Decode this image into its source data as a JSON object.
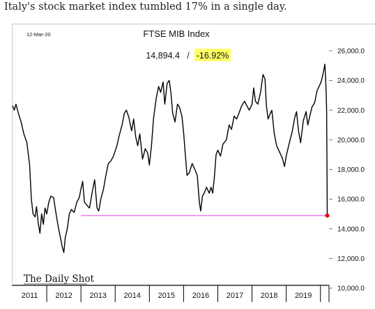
{
  "headline": "Italy's stock market index tumbled 17% in a single day.",
  "chart_data": {
    "type": "line",
    "date_label": "12-Mar-20",
    "title": "FTSE MIB Index",
    "last_value": "14,894.4",
    "value_separator": "/",
    "change_label": "-16.92%",
    "change_highlight_color": "#ffff66",
    "line_color": "#000000",
    "reference_line": {
      "y": 14894.4,
      "color": "#ee82ee"
    },
    "last_point_color": "#e00000",
    "ylim": [
      10000,
      26000
    ],
    "y_ticks": [
      {
        "value": 26000,
        "label": "26,000.0"
      },
      {
        "value": 24000,
        "label": "24,000.0"
      },
      {
        "value": 22000,
        "label": "22,000.0"
      },
      {
        "value": 20000,
        "label": "20,000.0"
      },
      {
        "value": 18000,
        "label": "18,000.0"
      },
      {
        "value": 16000,
        "label": "16,000.0"
      },
      {
        "value": 14000,
        "label": "14,000.0"
      },
      {
        "value": 12000,
        "label": "12,000.0"
      },
      {
        "value": 10000,
        "label": "10,000.0"
      }
    ],
    "xlim": [
      2011.0,
      2020.25
    ],
    "x_labels": [
      {
        "x": 2011.5,
        "label": "2011"
      },
      {
        "x": 2012.5,
        "label": "2012"
      },
      {
        "x": 2013.5,
        "label": "2013"
      },
      {
        "x": 2014.5,
        "label": "2014"
      },
      {
        "x": 2015.5,
        "label": "2015"
      },
      {
        "x": 2016.5,
        "label": "2016"
      },
      {
        "x": 2017.5,
        "label": "2017"
      },
      {
        "x": 2018.5,
        "label": "2018"
      },
      {
        "x": 2019.5,
        "label": "2019"
      }
    ],
    "series": [
      {
        "points": [
          [
            2011.0,
            22300
          ],
          [
            2011.05,
            22000
          ],
          [
            2011.1,
            22400
          ],
          [
            2011.17,
            21800
          ],
          [
            2011.25,
            21200
          ],
          [
            2011.33,
            20400
          ],
          [
            2011.42,
            19800
          ],
          [
            2011.5,
            18300
          ],
          [
            2011.55,
            16000
          ],
          [
            2011.6,
            15000
          ],
          [
            2011.66,
            14800
          ],
          [
            2011.7,
            15500
          ],
          [
            2011.75,
            14400
          ],
          [
            2011.8,
            13700
          ],
          [
            2011.85,
            15000
          ],
          [
            2011.9,
            14300
          ],
          [
            2011.95,
            15400
          ],
          [
            2012.0,
            15000
          ],
          [
            2012.06,
            15800
          ],
          [
            2012.12,
            16200
          ],
          [
            2012.2,
            16100
          ],
          [
            2012.26,
            15200
          ],
          [
            2012.33,
            14200
          ],
          [
            2012.4,
            13400
          ],
          [
            2012.45,
            12800
          ],
          [
            2012.5,
            12400
          ],
          [
            2012.54,
            13400
          ],
          [
            2012.6,
            14000
          ],
          [
            2012.66,
            15000
          ],
          [
            2012.72,
            15300
          ],
          [
            2012.8,
            15100
          ],
          [
            2012.88,
            15800
          ],
          [
            2012.95,
            16100
          ],
          [
            2013.0,
            16700
          ],
          [
            2013.05,
            17200
          ],
          [
            2013.1,
            15800
          ],
          [
            2013.17,
            15600
          ],
          [
            2013.25,
            15400
          ],
          [
            2013.33,
            16500
          ],
          [
            2013.4,
            17300
          ],
          [
            2013.47,
            15400
          ],
          [
            2013.52,
            15200
          ],
          [
            2013.58,
            16000
          ],
          [
            2013.66,
            16700
          ],
          [
            2013.72,
            17500
          ],
          [
            2013.8,
            18400
          ],
          [
            2013.88,
            18600
          ],
          [
            2013.95,
            18900
          ],
          [
            2014.05,
            19600
          ],
          [
            2014.12,
            20300
          ],
          [
            2014.2,
            21000
          ],
          [
            2014.27,
            21800
          ],
          [
            2014.33,
            22000
          ],
          [
            2014.4,
            21500
          ],
          [
            2014.48,
            20600
          ],
          [
            2014.54,
            21400
          ],
          [
            2014.6,
            20200
          ],
          [
            2014.66,
            19600
          ],
          [
            2014.72,
            20400
          ],
          [
            2014.8,
            18700
          ],
          [
            2014.88,
            19400
          ],
          [
            2014.95,
            19100
          ],
          [
            2015.0,
            18300
          ],
          [
            2015.06,
            19600
          ],
          [
            2015.12,
            21400
          ],
          [
            2015.2,
            22800
          ],
          [
            2015.27,
            23600
          ],
          [
            2015.33,
            23200
          ],
          [
            2015.4,
            23900
          ],
          [
            2015.45,
            22400
          ],
          [
            2015.52,
            23800
          ],
          [
            2015.58,
            24000
          ],
          [
            2015.63,
            23200
          ],
          [
            2015.68,
            21800
          ],
          [
            2015.75,
            21200
          ],
          [
            2015.82,
            22400
          ],
          [
            2015.88,
            22200
          ],
          [
            2015.95,
            21600
          ],
          [
            2016.0,
            20500
          ],
          [
            2016.05,
            19000
          ],
          [
            2016.1,
            17600
          ],
          [
            2016.17,
            17800
          ],
          [
            2016.25,
            18400
          ],
          [
            2016.33,
            18000
          ],
          [
            2016.4,
            17600
          ],
          [
            2016.46,
            15800
          ],
          [
            2016.5,
            15200
          ],
          [
            2016.55,
            16200
          ],
          [
            2016.6,
            16400
          ],
          [
            2016.67,
            16800
          ],
          [
            2016.75,
            16400
          ],
          [
            2016.8,
            16800
          ],
          [
            2016.85,
            16400
          ],
          [
            2016.9,
            17500
          ],
          [
            2016.95,
            19000
          ],
          [
            2017.0,
            19300
          ],
          [
            2017.08,
            18900
          ],
          [
            2017.15,
            19700
          ],
          [
            2017.25,
            20000
          ],
          [
            2017.33,
            21000
          ],
          [
            2017.4,
            20700
          ],
          [
            2017.48,
            21600
          ],
          [
            2017.55,
            21400
          ],
          [
            2017.62,
            21800
          ],
          [
            2017.7,
            22300
          ],
          [
            2017.78,
            22600
          ],
          [
            2017.85,
            22300
          ],
          [
            2017.92,
            22000
          ],
          [
            2018.0,
            22400
          ],
          [
            2018.05,
            23500
          ],
          [
            2018.1,
            22600
          ],
          [
            2018.17,
            22400
          ],
          [
            2018.25,
            23200
          ],
          [
            2018.32,
            24400
          ],
          [
            2018.38,
            24100
          ],
          [
            2018.42,
            22300
          ],
          [
            2018.47,
            21400
          ],
          [
            2018.52,
            21700
          ],
          [
            2018.58,
            22000
          ],
          [
            2018.65,
            20400
          ],
          [
            2018.72,
            19600
          ],
          [
            2018.8,
            19200
          ],
          [
            2018.88,
            18800
          ],
          [
            2018.95,
            18200
          ],
          [
            2019.0,
            18900
          ],
          [
            2019.08,
            19700
          ],
          [
            2019.17,
            20500
          ],
          [
            2019.25,
            21500
          ],
          [
            2019.3,
            21900
          ],
          [
            2019.36,
            20600
          ],
          [
            2019.42,
            19800
          ],
          [
            2019.5,
            21300
          ],
          [
            2019.58,
            21900
          ],
          [
            2019.63,
            21000
          ],
          [
            2019.68,
            21500
          ],
          [
            2019.75,
            22200
          ],
          [
            2019.83,
            22500
          ],
          [
            2019.9,
            23300
          ],
          [
            2019.96,
            23600
          ],
          [
            2020.02,
            23900
          ],
          [
            2020.08,
            24500
          ],
          [
            2020.13,
            25100
          ],
          [
            2020.15,
            24200
          ],
          [
            2020.17,
            23000
          ],
          [
            2020.18,
            21900
          ],
          [
            2020.19,
            18300
          ],
          [
            2020.2,
            14894.4
          ]
        ]
      }
    ],
    "source_logo": "The Daily Shot"
  }
}
